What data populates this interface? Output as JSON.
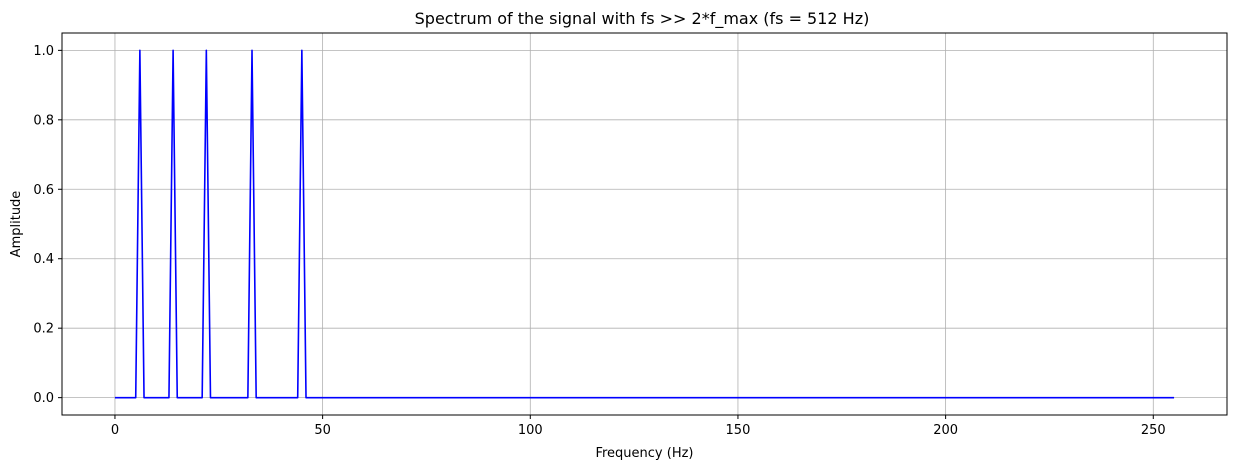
{
  "chart_data": {
    "type": "line",
    "title": "Spectrum of the signal with fs >> 2*f_max (fs = 512 Hz)",
    "xlabel": "Frequency (Hz)",
    "ylabel": "Amplitude",
    "xlim": [
      -12.75,
      267.75
    ],
    "ylim": [
      -0.05,
      1.05
    ],
    "grid": true,
    "x_ticks": [
      0,
      50,
      100,
      150,
      200,
      250
    ],
    "x_tick_labels": [
      "0",
      "50",
      "100",
      "150",
      "200",
      "250"
    ],
    "y_ticks": [
      0.0,
      0.2,
      0.4,
      0.6,
      0.8,
      1.0
    ],
    "y_tick_labels": [
      "0.0",
      "0.2",
      "0.4",
      "0.6",
      "0.8",
      "1.0"
    ],
    "series": [
      {
        "color": "#0000ff",
        "x": [
          0,
          5,
          6,
          7,
          13,
          14,
          15,
          21,
          22,
          23,
          32,
          33,
          34,
          44,
          45,
          46,
          255
        ],
        "y": [
          0,
          0,
          1,
          0,
          0,
          1,
          0,
          0,
          1,
          0,
          0,
          1,
          0,
          0,
          1,
          0,
          0
        ]
      }
    ]
  }
}
